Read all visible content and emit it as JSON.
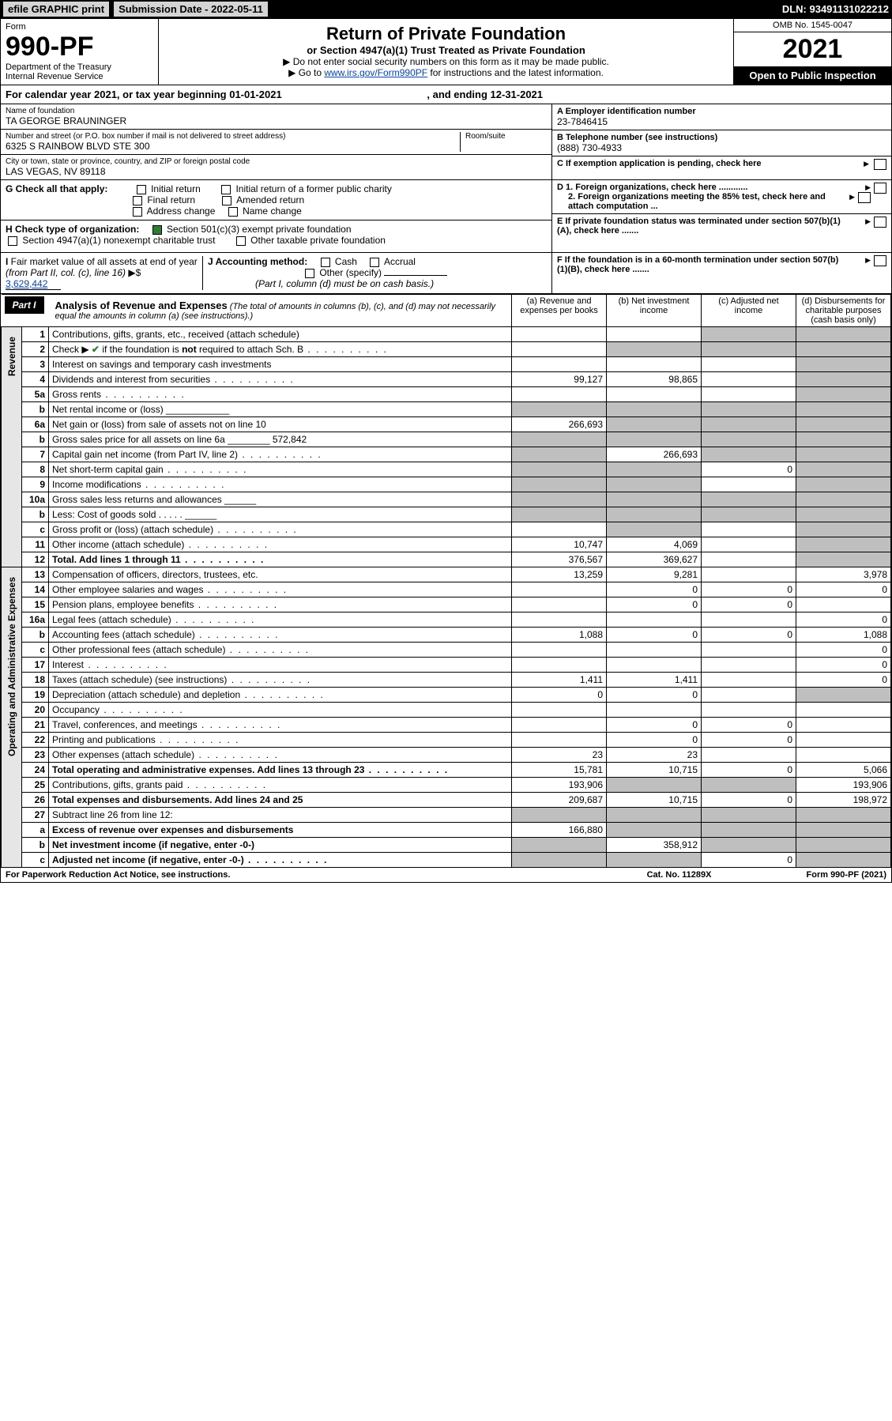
{
  "topbar": {
    "efile": "efile GRAPHIC print",
    "submission": "Submission Date - 2022-05-11",
    "dln": "DLN: 93491131022212"
  },
  "header": {
    "form_label": "Form",
    "form_no": "990-PF",
    "dept": "Department of the Treasury\nInternal Revenue Service",
    "title": "Return of Private Foundation",
    "subtitle": "or Section 4947(a)(1) Trust Treated as Private Foundation",
    "note1": "▶ Do not enter social security numbers on this form as it may be made public.",
    "note2_pre": "▶ Go to ",
    "note2_link": "www.irs.gov/Form990PF",
    "note2_post": " for instructions and the latest information.",
    "omb": "OMB No. 1545-0047",
    "year": "2021",
    "open": "Open to Public Inspection"
  },
  "calyear": {
    "text": "For calendar year 2021, or tax year beginning 01-01-2021",
    "ending": ", and ending 12-31-2021"
  },
  "ident": {
    "name_label": "Name of foundation",
    "name": "TA GEORGE BRAUNINGER",
    "addr_label": "Number and street (or P.O. box number if mail is not delivered to street address)",
    "addr": "6325 S RAINBOW BLVD STE 300",
    "room_label": "Room/suite",
    "city_label": "City or town, state or province, country, and ZIP or foreign postal code",
    "city": "LAS VEGAS, NV  89118",
    "a_label": "A Employer identification number",
    "a_val": "23-7846415",
    "b_label": "B Telephone number (see instructions)",
    "b_val": "(888) 730-4933",
    "c_label": "C If exemption application is pending, check here"
  },
  "g": {
    "label": "G Check all that apply:",
    "opts": [
      "Initial return",
      "Initial return of a former public charity",
      "Final return",
      "Amended return",
      "Address change",
      "Name change"
    ]
  },
  "h": {
    "label": "H Check type of organization:",
    "opt1": "Section 501(c)(3) exempt private foundation",
    "opt2": "Section 4947(a)(1) nonexempt charitable trust",
    "opt3": "Other taxable private foundation"
  },
  "d": {
    "d1": "D 1. Foreign organizations, check here ............",
    "d2": "2. Foreign organizations meeting the 85% test, check here and attach computation ..."
  },
  "e": "E  If private foundation status was terminated under section 507(b)(1)(A), check here .......",
  "f": "F  If the foundation is in a 60-month termination under section 507(b)(1)(B), check here .......",
  "i": {
    "label": "I Fair market value of all assets at end of year (from Part II, col. (c), line 16) ▶$ ",
    "val": "3,629,442"
  },
  "j": {
    "label": "J Accounting method:",
    "cash": "Cash",
    "accrual": "Accrual",
    "other": "Other (specify)",
    "note": "(Part I, column (d) must be on cash basis.)"
  },
  "part1": {
    "badge": "Part I",
    "title": "Analysis of Revenue and Expenses",
    "note": " (The total of amounts in columns (b), (c), and (d) may not necessarily equal the amounts in column (a) (see instructions).)",
    "cols": {
      "a": "(a) Revenue and expenses per books",
      "b": "(b) Net investment income",
      "c": "(c) Adjusted net income",
      "d": "(d) Disbursements for charitable purposes (cash basis only)"
    }
  },
  "sections": {
    "rev": "Revenue",
    "op": "Operating and Administrative Expenses"
  },
  "rows": [
    {
      "n": "1",
      "d": "Contributions, gifts, grants, etc., received (attach schedule)",
      "a": "",
      "b": "",
      "c": "s",
      "e": "s"
    },
    {
      "n": "2",
      "d": "Check ▶ ✔ if the foundation is not required to attach Sch. B",
      "dots": true,
      "a": "",
      "b": "s",
      "c": "s",
      "e": "s"
    },
    {
      "n": "3",
      "d": "Interest on savings and temporary cash investments",
      "a": "",
      "b": "",
      "c": "",
      "e": "s"
    },
    {
      "n": "4",
      "d": "Dividends and interest from securities",
      "dots": true,
      "a": "99,127",
      "b": "98,865",
      "c": "",
      "e": "s"
    },
    {
      "n": "5a",
      "d": "Gross rents",
      "dots": true,
      "a": "",
      "b": "",
      "c": "",
      "e": "s"
    },
    {
      "n": "b",
      "d": "Net rental income or (loss)  ____________",
      "a": "s",
      "b": "s",
      "c": "s",
      "e": "s"
    },
    {
      "n": "6a",
      "d": "Net gain or (loss) from sale of assets not on line 10",
      "a": "266,693",
      "b": "s",
      "c": "s",
      "e": "s"
    },
    {
      "n": "b",
      "d": "Gross sales price for all assets on line 6a ________ 572,842",
      "a": "s",
      "b": "s",
      "c": "s",
      "e": "s"
    },
    {
      "n": "7",
      "d": "Capital gain net income (from Part IV, line 2)",
      "dots": true,
      "a": "s",
      "b": "266,693",
      "c": "s",
      "e": "s"
    },
    {
      "n": "8",
      "d": "Net short-term capital gain",
      "dots": true,
      "a": "s",
      "b": "s",
      "c": "0",
      "e": "s"
    },
    {
      "n": "9",
      "d": "Income modifications",
      "dots": true,
      "a": "s",
      "b": "s",
      "c": "",
      "e": "s"
    },
    {
      "n": "10a",
      "d": "Gross sales less returns and allowances  ______",
      "a": "s",
      "b": "s",
      "c": "s",
      "e": "s"
    },
    {
      "n": "b",
      "d": "Less: Cost of goods sold   . . . . .  ______",
      "a": "s",
      "b": "s",
      "c": "s",
      "e": "s"
    },
    {
      "n": "c",
      "d": "Gross profit or (loss) (attach schedule)",
      "dots": true,
      "a": "",
      "b": "s",
      "c": "",
      "e": "s"
    },
    {
      "n": "11",
      "d": "Other income (attach schedule)",
      "dots": true,
      "a": "10,747",
      "b": "4,069",
      "c": "",
      "e": "s"
    },
    {
      "n": "12",
      "d": "Total. Add lines 1 through 11",
      "bold": true,
      "dots": true,
      "a": "376,567",
      "b": "369,627",
      "c": "",
      "e": "s"
    },
    {
      "n": "13",
      "d": "Compensation of officers, directors, trustees, etc.",
      "a": "13,259",
      "b": "9,281",
      "c": "",
      "e": "3,978"
    },
    {
      "n": "14",
      "d": "Other employee salaries and wages",
      "dots": true,
      "a": "",
      "b": "0",
      "c": "0",
      "e": "0"
    },
    {
      "n": "15",
      "d": "Pension plans, employee benefits",
      "dots": true,
      "a": "",
      "b": "0",
      "c": "0",
      "e": ""
    },
    {
      "n": "16a",
      "d": "Legal fees (attach schedule)",
      "dots": true,
      "a": "",
      "b": "",
      "c": "",
      "e": "0"
    },
    {
      "n": "b",
      "d": "Accounting fees (attach schedule)",
      "dots": true,
      "a": "1,088",
      "b": "0",
      "c": "0",
      "e": "1,088"
    },
    {
      "n": "c",
      "d": "Other professional fees (attach schedule)",
      "dots": true,
      "a": "",
      "b": "",
      "c": "",
      "e": "0"
    },
    {
      "n": "17",
      "d": "Interest",
      "dots": true,
      "a": "",
      "b": "",
      "c": "",
      "e": "0"
    },
    {
      "n": "18",
      "d": "Taxes (attach schedule) (see instructions)",
      "dots": true,
      "a": "1,411",
      "b": "1,411",
      "c": "",
      "e": "0"
    },
    {
      "n": "19",
      "d": "Depreciation (attach schedule) and depletion",
      "dots": true,
      "a": "0",
      "b": "0",
      "c": "",
      "e": "s"
    },
    {
      "n": "20",
      "d": "Occupancy",
      "dots": true,
      "a": "",
      "b": "",
      "c": "",
      "e": ""
    },
    {
      "n": "21",
      "d": "Travel, conferences, and meetings",
      "dots": true,
      "a": "",
      "b": "0",
      "c": "0",
      "e": ""
    },
    {
      "n": "22",
      "d": "Printing and publications",
      "dots": true,
      "a": "",
      "b": "0",
      "c": "0",
      "e": ""
    },
    {
      "n": "23",
      "d": "Other expenses (attach schedule)",
      "dots": true,
      "a": "23",
      "b": "23",
      "c": "",
      "e": ""
    },
    {
      "n": "24",
      "d": "Total operating and administrative expenses. Add lines 13 through 23",
      "bold": true,
      "dots": true,
      "a": "15,781",
      "b": "10,715",
      "c": "0",
      "e": "5,066"
    },
    {
      "n": "25",
      "d": "Contributions, gifts, grants paid",
      "dots": true,
      "a": "193,906",
      "b": "s",
      "c": "s",
      "e": "193,906"
    },
    {
      "n": "26",
      "d": "Total expenses and disbursements. Add lines 24 and 25",
      "bold": true,
      "a": "209,687",
      "b": "10,715",
      "c": "0",
      "e": "198,972"
    },
    {
      "n": "27",
      "d": "Subtract line 26 from line 12:",
      "a": "s",
      "b": "s",
      "c": "s",
      "e": "s"
    },
    {
      "n": "a",
      "d": "Excess of revenue over expenses and disbursements",
      "bold": true,
      "a": "166,880",
      "b": "s",
      "c": "s",
      "e": "s"
    },
    {
      "n": "b",
      "d": "Net investment income (if negative, enter -0-)",
      "bold": true,
      "a": "s",
      "b": "358,912",
      "c": "s",
      "e": "s"
    },
    {
      "n": "c",
      "d": "Adjusted net income (if negative, enter -0-)",
      "bold": true,
      "dots": true,
      "a": "s",
      "b": "s",
      "c": "0",
      "e": "s"
    }
  ],
  "footer": {
    "left": "For Paperwork Reduction Act Notice, see instructions.",
    "mid": "Cat. No. 11289X",
    "right": "Form 990-PF (2021)"
  }
}
